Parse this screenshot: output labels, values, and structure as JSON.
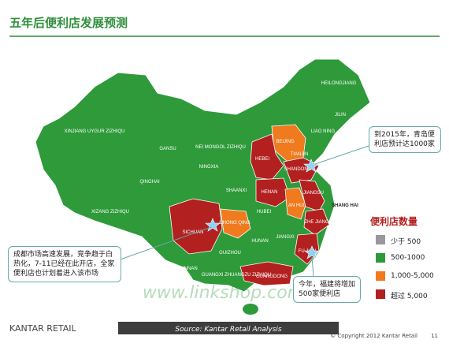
{
  "header": {
    "title": "五年后便利店发展预测"
  },
  "map": {
    "regions": [
      "HEILONGJIANG",
      "JILIN",
      "LIAO NING",
      "XINJIANG UYGUR ZIZHIQU",
      "NEI MONGOL ZIZHIQU",
      "GANSU",
      "BEIJING",
      "TIANJIN",
      "HEBEI",
      "SHANDONG",
      "NINGXIA",
      "QINGHAI",
      "SHAANXI",
      "HENAN",
      "JIANGSU",
      "AN HUI",
      "SHANG HAI",
      "XIZANG ZIZHIQU",
      "SICHUAN",
      "CHONG QING",
      "HUBEI",
      "ZHE JIANG",
      "HUNAN",
      "JIANGXI",
      "FU JIAN",
      "GUIZHOU",
      "YUNNAN",
      "GUANGXI ZHUANGZU ZIZHIQU",
      "GUANGDONG"
    ]
  },
  "callouts": [
    "到2015年，青岛便利店预计达1000家",
    "成都市场高速发展，竞争趋于白热化，7-11已经在此开店，全家便利店也计划着进入该市场",
    "今年，福建将增加500家便利店"
  ],
  "legend": {
    "title": "便利店数量",
    "items": [
      "少于 500",
      "500-1000",
      "1,000-5,000",
      "超过 5,000"
    ]
  },
  "watermark": "www.linkshop.com.cn",
  "footer": {
    "brand": "KANTAR RETAIL",
    "source": "Source: Kantar Retail Analysis",
    "copyright": "© Copyright 2012 Kantar Retail",
    "page": "11"
  }
}
